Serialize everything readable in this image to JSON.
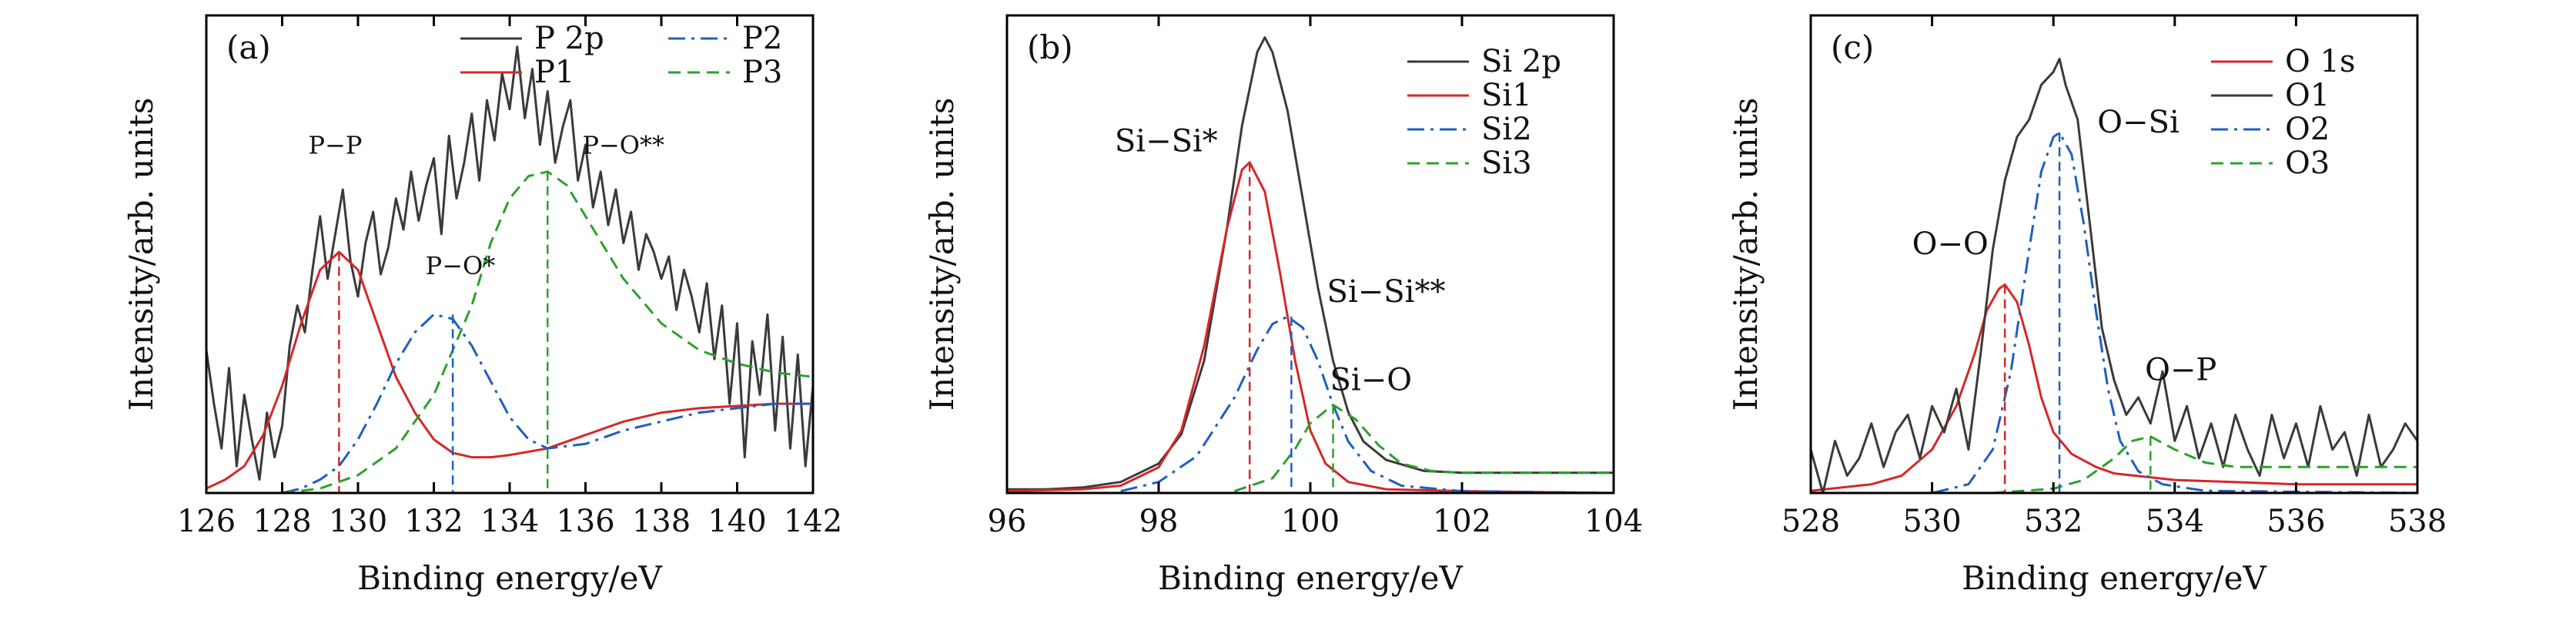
{
  "colors": {
    "measured": "#3a3a3a",
    "component1": "#d62728",
    "component2": "#1f5fbf",
    "component3": "#2ca02c"
  },
  "chart_data": [
    {
      "type": "line",
      "panel_label": "(a)",
      "xlabel": "Binding energy/eV",
      "ylabel": "Intensity/arb. units",
      "xlim": [
        126,
        142
      ],
      "ylim": [
        0,
        1.07
      ],
      "xticks": [
        126,
        128,
        130,
        132,
        134,
        136,
        138,
        140,
        142
      ],
      "legend_position": "top",
      "series": [
        {
          "name": "P 2p",
          "style": "solid",
          "color": "#3a3a3a",
          "x": [
            126.0,
            126.2,
            126.4,
            126.6,
            126.8,
            127.0,
            127.2,
            127.4,
            127.6,
            127.8,
            128.0,
            128.2,
            128.4,
            128.6,
            128.8,
            129.0,
            129.2,
            129.4,
            129.6,
            129.8,
            130.0,
            130.2,
            130.4,
            130.6,
            130.8,
            131.0,
            131.2,
            131.4,
            131.6,
            131.8,
            132.0,
            132.2,
            132.4,
            132.6,
            132.8,
            133.0,
            133.2,
            133.4,
            133.6,
            133.8,
            134.0,
            134.2,
            134.4,
            134.6,
            134.8,
            135.0,
            135.2,
            135.4,
            135.6,
            135.8,
            136.0,
            136.2,
            136.4,
            136.6,
            136.8,
            137.0,
            137.2,
            137.4,
            137.6,
            137.8,
            138.0,
            138.2,
            138.4,
            138.6,
            138.8,
            139.0,
            139.2,
            139.4,
            139.6,
            139.8,
            140.0,
            140.2,
            140.4,
            140.6,
            140.8,
            141.0,
            141.2,
            141.4,
            141.6,
            141.8,
            142.0
          ],
          "y": [
            0.32,
            0.2,
            0.1,
            0.28,
            0.06,
            0.22,
            0.12,
            0.03,
            0.18,
            0.08,
            0.15,
            0.33,
            0.42,
            0.36,
            0.5,
            0.62,
            0.48,
            0.58,
            0.68,
            0.52,
            0.44,
            0.56,
            0.63,
            0.49,
            0.55,
            0.66,
            0.59,
            0.72,
            0.61,
            0.69,
            0.75,
            0.58,
            0.8,
            0.66,
            0.74,
            0.85,
            0.7,
            0.88,
            0.79,
            0.94,
            0.86,
            1.0,
            0.84,
            0.95,
            0.78,
            0.9,
            0.74,
            0.82,
            0.88,
            0.7,
            0.78,
            0.64,
            0.72,
            0.6,
            0.68,
            0.56,
            0.63,
            0.5,
            0.58,
            0.54,
            0.48,
            0.53,
            0.41,
            0.5,
            0.44,
            0.36,
            0.47,
            0.3,
            0.42,
            0.2,
            0.38,
            0.08,
            0.34,
            0.22,
            0.4,
            0.14,
            0.35,
            0.1,
            0.31,
            0.06,
            0.24
          ]
        },
        {
          "name": "P1",
          "style": "solid",
          "color": "#d62728",
          "x": [
            126,
            126.5,
            127,
            127.5,
            128,
            128.5,
            129,
            129.5,
            130,
            130.5,
            131,
            131.5,
            132,
            132.5,
            133,
            133.5,
            134,
            135,
            136,
            137,
            138,
            139,
            140,
            141,
            142
          ],
          "y": [
            0.01,
            0.03,
            0.06,
            0.13,
            0.24,
            0.38,
            0.5,
            0.54,
            0.5,
            0.38,
            0.26,
            0.18,
            0.12,
            0.09,
            0.08,
            0.08,
            0.085,
            0.1,
            0.13,
            0.16,
            0.18,
            0.19,
            0.195,
            0.2,
            0.2
          ]
        },
        {
          "name": "P2",
          "style": "dashdot",
          "color": "#1f5fbf",
          "x": [
            128,
            128.5,
            129,
            129.5,
            130,
            130.5,
            131,
            131.5,
            132,
            132.5,
            133,
            133.5,
            134,
            134.5,
            135,
            136,
            137,
            138,
            139,
            140,
            141,
            142
          ],
          "y": [
            0.0,
            0.01,
            0.03,
            0.06,
            0.12,
            0.2,
            0.29,
            0.36,
            0.4,
            0.39,
            0.33,
            0.25,
            0.17,
            0.12,
            0.1,
            0.11,
            0.14,
            0.16,
            0.18,
            0.19,
            0.2,
            0.2
          ]
        },
        {
          "name": "P3",
          "style": "dashed",
          "color": "#2ca02c",
          "x": [
            128,
            129,
            130,
            131,
            132,
            133,
            133.5,
            134,
            134.5,
            135,
            135.5,
            136,
            137,
            138,
            139,
            140,
            141,
            142
          ],
          "y": [
            0.0,
            0.01,
            0.04,
            0.1,
            0.22,
            0.42,
            0.56,
            0.66,
            0.71,
            0.72,
            0.69,
            0.62,
            0.48,
            0.38,
            0.32,
            0.29,
            0.27,
            0.26
          ]
        }
      ],
      "markers": [
        {
          "x": 129.5,
          "y": 0.54,
          "color": "#d62728"
        },
        {
          "x": 132.5,
          "y": 0.4,
          "color": "#1f5fbf"
        },
        {
          "x": 135.0,
          "y": 0.72,
          "color": "#2ca02c"
        }
      ],
      "annotations": [
        {
          "text": "P−P",
          "x": 129.4,
          "y": 0.76,
          "small": true
        },
        {
          "text": "P−O*",
          "x": 132.7,
          "y": 0.49,
          "small": true
        },
        {
          "text": "P−O**",
          "x": 137.0,
          "y": 0.76,
          "small": true
        }
      ]
    },
    {
      "type": "line",
      "panel_label": "(b)",
      "xlabel": "Binding energy/eV",
      "ylabel": "Intensity/arb. units",
      "xlim": [
        96,
        104
      ],
      "ylim": [
        0,
        1.3
      ],
      "xticks": [
        96,
        98,
        100,
        102,
        104
      ],
      "legend_position": "top-right",
      "series": [
        {
          "name": "Si 2p",
          "style": "solid",
          "color": "#3a3a3a",
          "x": [
            96,
            96.5,
            97,
            97.5,
            98,
            98.3,
            98.6,
            98.9,
            99.1,
            99.3,
            99.4,
            99.5,
            99.7,
            99.9,
            100.1,
            100.3,
            100.5,
            100.7,
            101,
            101.5,
            102,
            103,
            104
          ],
          "y": [
            0.01,
            0.01,
            0.015,
            0.03,
            0.08,
            0.16,
            0.36,
            0.72,
            1.0,
            1.2,
            1.24,
            1.2,
            1.04,
            0.8,
            0.56,
            0.36,
            0.22,
            0.14,
            0.09,
            0.06,
            0.055,
            0.055,
            0.055
          ]
        },
        {
          "name": "Si1",
          "style": "solid",
          "color": "#d62728",
          "x": [
            96,
            97,
            97.5,
            98,
            98.3,
            98.6,
            98.9,
            99.1,
            99.2,
            99.4,
            99.6,
            99.8,
            100,
            100.2,
            100.5,
            101,
            102,
            104
          ],
          "y": [
            0.005,
            0.01,
            0.02,
            0.07,
            0.17,
            0.4,
            0.72,
            0.88,
            0.9,
            0.82,
            0.6,
            0.36,
            0.17,
            0.08,
            0.03,
            0.01,
            0.005,
            0.0
          ]
        },
        {
          "name": "Si2",
          "style": "dashdot",
          "color": "#1f5fbf",
          "x": [
            97.5,
            98,
            98.5,
            99,
            99.3,
            99.5,
            99.7,
            99.9,
            100.1,
            100.3,
            100.5,
            100.8,
            101.2,
            102,
            104
          ],
          "y": [
            0.005,
            0.03,
            0.1,
            0.26,
            0.39,
            0.46,
            0.48,
            0.45,
            0.36,
            0.24,
            0.14,
            0.06,
            0.02,
            0.005,
            0.0
          ]
        },
        {
          "name": "Si3",
          "style": "dashed",
          "color": "#2ca02c",
          "x": [
            99,
            99.5,
            99.8,
            100,
            100.3,
            100.6,
            100.9,
            101.2,
            101.6,
            102,
            103,
            104
          ],
          "y": [
            0.005,
            0.04,
            0.12,
            0.19,
            0.24,
            0.2,
            0.13,
            0.08,
            0.06,
            0.055,
            0.055,
            0.055
          ]
        }
      ],
      "markers": [
        {
          "x": 99.2,
          "y": 0.9,
          "color": "#d62728"
        },
        {
          "x": 99.75,
          "y": 0.48,
          "color": "#1f5fbf"
        },
        {
          "x": 100.3,
          "y": 0.24,
          "color": "#2ca02c"
        }
      ],
      "annotations": [
        {
          "text": "Si−Si*",
          "x": 98.1,
          "y": 0.93,
          "small": false
        },
        {
          "text": "Si−Si**",
          "x": 101.0,
          "y": 0.52,
          "small": false
        },
        {
          "text": "Si−O",
          "x": 100.8,
          "y": 0.28,
          "small": false
        }
      ]
    },
    {
      "type": "line",
      "panel_label": "(c)",
      "xlabel": "Binding energy/eV",
      "ylabel": "Intensity/arb. units",
      "xlim": [
        528,
        538
      ],
      "ylim": [
        0,
        1.1
      ],
      "xticks": [
        528,
        530,
        532,
        534,
        536,
        538
      ],
      "legend_position": "top-right",
      "series": [
        {
          "name": "O 1s",
          "style": "solid",
          "color": "#d62728",
          "x": [
            528,
            529,
            529.5,
            530,
            530.4,
            530.7,
            530.9,
            531.1,
            531.2,
            531.4,
            531.6,
            531.8,
            532,
            532.3,
            532.7,
            533,
            534,
            535,
            536,
            538
          ],
          "y": [
            0.005,
            0.02,
            0.04,
            0.1,
            0.2,
            0.32,
            0.42,
            0.47,
            0.48,
            0.44,
            0.34,
            0.22,
            0.14,
            0.09,
            0.06,
            0.045,
            0.03,
            0.025,
            0.02,
            0.02
          ]
        },
        {
          "name": "O1",
          "style": "solid",
          "color": "#3a3a3a",
          "x": [
            528,
            528.2,
            528.4,
            528.6,
            528.8,
            529,
            529.2,
            529.4,
            529.6,
            529.8,
            530,
            530.2,
            530.4,
            530.6,
            530.8,
            531,
            531.2,
            531.4,
            531.6,
            531.8,
            532,
            532.1,
            532.2,
            532.4,
            532.6,
            532.8,
            533,
            533.2,
            533.4,
            533.6,
            533.8,
            534,
            534.2,
            534.4,
            534.6,
            534.8,
            535,
            535.2,
            535.4,
            535.6,
            535.8,
            536,
            536.2,
            536.4,
            536.6,
            536.8,
            537,
            537.2,
            537.4,
            537.6,
            537.8,
            538
          ],
          "y": [
            0.1,
            0.0,
            0.12,
            0.04,
            0.08,
            0.16,
            0.06,
            0.14,
            0.18,
            0.08,
            0.2,
            0.14,
            0.24,
            0.1,
            0.32,
            0.56,
            0.72,
            0.82,
            0.86,
            0.94,
            0.97,
            1.0,
            0.94,
            0.86,
            0.62,
            0.38,
            0.26,
            0.18,
            0.22,
            0.16,
            0.28,
            0.12,
            0.2,
            0.08,
            0.16,
            0.06,
            0.18,
            0.1,
            0.04,
            0.18,
            0.08,
            0.16,
            0.06,
            0.2,
            0.1,
            0.14,
            0.04,
            0.18,
            0.06,
            0.1,
            0.16,
            0.12
          ]
        },
        {
          "name": "O2",
          "style": "dashdot",
          "color": "#1f5fbf",
          "x": [
            530,
            530.6,
            531,
            531.3,
            531.6,
            531.8,
            532,
            532.1,
            532.3,
            532.5,
            532.7,
            532.9,
            533.1,
            533.4,
            533.8,
            534.5,
            538
          ],
          "y": [
            0.0,
            0.02,
            0.1,
            0.28,
            0.56,
            0.74,
            0.82,
            0.83,
            0.78,
            0.62,
            0.42,
            0.24,
            0.12,
            0.05,
            0.02,
            0.005,
            0.0
          ]
        },
        {
          "name": "O3",
          "style": "dashed",
          "color": "#2ca02c",
          "x": [
            531,
            532,
            532.5,
            533,
            533.3,
            533.6,
            534,
            534.5,
            535,
            536,
            537,
            538
          ],
          "y": [
            0.0,
            0.01,
            0.03,
            0.08,
            0.12,
            0.13,
            0.1,
            0.07,
            0.06,
            0.06,
            0.06,
            0.06
          ]
        }
      ],
      "markers": [
        {
          "x": 531.2,
          "y": 0.48,
          "color": "#d62728"
        },
        {
          "x": 532.1,
          "y": 0.83,
          "color": "#1f5fbf"
        },
        {
          "x": 533.6,
          "y": 0.13,
          "color": "#2ca02c"
        }
      ],
      "annotations": [
        {
          "text": "O−O",
          "x": 530.3,
          "y": 0.55,
          "small": false
        },
        {
          "text": "O−Si",
          "x": 533.4,
          "y": 0.83,
          "small": false
        },
        {
          "text": "O−P",
          "x": 534.1,
          "y": 0.26,
          "small": false
        }
      ]
    }
  ]
}
